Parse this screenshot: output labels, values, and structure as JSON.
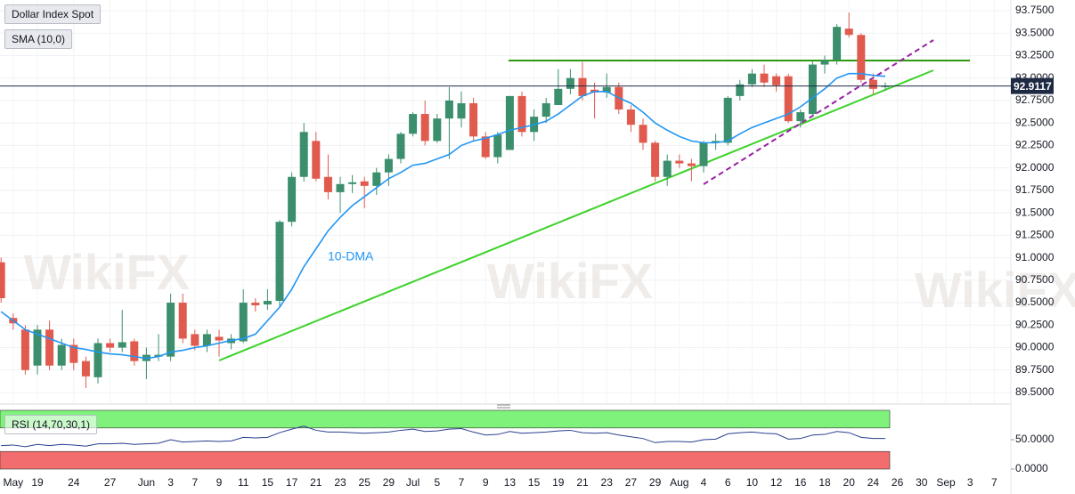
{
  "chart_data": [
    {
      "type": "candlestick",
      "title": "Dollar Index Spot",
      "categories": [
        null,
        "May",
        null,
        "19",
        null,
        null,
        "24",
        null,
        null,
        "27",
        null,
        null,
        "Jun",
        null,
        "3",
        null,
        "7",
        null,
        "9",
        null,
        "11",
        null,
        "15",
        null,
        "17",
        null,
        "21",
        null,
        "23",
        null,
        "25",
        null,
        "29",
        null,
        "Jul",
        null,
        "5",
        null,
        "7",
        null,
        "9",
        null,
        "13",
        null,
        "15",
        null,
        "19",
        null,
        "21",
        null,
        "23",
        null,
        "27",
        null,
        "29",
        null,
        "Aug",
        null,
        "4",
        null,
        "6",
        null,
        "10",
        null,
        "12",
        null,
        "16",
        null,
        "18",
        null,
        "20",
        null,
        "24",
        null,
        "26",
        null,
        "30",
        null,
        "Sep",
        null,
        "3",
        null,
        "7"
      ],
      "open": [
        90.95,
        90.33,
        90.2,
        89.8,
        90.2,
        89.8,
        90.03,
        89.85,
        89.67,
        90.05,
        90.0,
        90.07,
        89.85,
        89.9,
        89.9,
        90.5,
        90.15,
        90.02,
        90.12,
        90.05,
        90.07,
        90.5,
        90.48,
        90.52,
        91.4,
        91.9,
        92.3,
        91.9,
        91.73,
        91.82,
        91.85,
        91.8,
        91.95,
        92.1,
        92.38,
        92.6,
        92.3,
        92.55,
        92.55,
        92.72,
        92.35,
        92.12,
        92.2,
        92.8,
        92.4,
        92.57,
        92.7,
        92.88,
        93.0,
        92.87,
        92.84,
        92.9,
        92.65,
        92.48,
        92.28,
        91.9,
        92.08,
        92.05,
        92.02,
        92.28,
        92.28,
        92.8,
        92.93,
        93.05,
        93.02,
        93.02,
        92.52,
        92.6,
        93.15,
        93.2,
        93.55,
        93.48,
        92.98,
        92.9,
        null,
        null,
        null,
        null,
        null,
        null,
        null,
        null,
        null
      ],
      "high": [
        91.0,
        90.38,
        90.25,
        90.25,
        90.3,
        90.1,
        90.1,
        89.9,
        90.1,
        90.1,
        90.42,
        90.1,
        90.0,
        90.15,
        90.6,
        90.6,
        90.2,
        90.2,
        90.2,
        90.15,
        90.65,
        90.55,
        90.65,
        91.42,
        91.95,
        92.5,
        92.4,
        92.15,
        91.9,
        91.92,
        91.9,
        92.0,
        92.15,
        92.4,
        92.62,
        92.75,
        92.6,
        92.9,
        92.85,
        92.78,
        92.4,
        92.4,
        92.8,
        92.85,
        92.65,
        92.78,
        93.1,
        93.1,
        93.18,
        92.95,
        93.05,
        92.95,
        92.7,
        92.55,
        92.3,
        92.15,
        92.15,
        92.1,
        92.3,
        92.38,
        92.8,
        92.98,
        93.1,
        93.15,
        93.05,
        93.05,
        92.65,
        93.2,
        93.25,
        93.6,
        93.73,
        93.5,
        93.05,
        92.95,
        null,
        null,
        null,
        null,
        null,
        null,
        null,
        null,
        null
      ],
      "low": [
        90.5,
        90.2,
        89.7,
        89.7,
        89.75,
        89.75,
        89.75,
        89.55,
        89.6,
        89.95,
        89.95,
        89.8,
        89.65,
        89.85,
        89.85,
        90.05,
        89.97,
        89.95,
        89.9,
        89.98,
        90.05,
        90.4,
        90.42,
        90.45,
        91.35,
        91.85,
        91.85,
        91.65,
        91.5,
        91.72,
        91.55,
        91.7,
        91.8,
        92.05,
        92.35,
        92.25,
        92.28,
        92.1,
        92.45,
        92.3,
        92.1,
        92.05,
        92.2,
        92.35,
        92.3,
        92.5,
        92.7,
        92.82,
        92.75,
        92.55,
        92.78,
        92.6,
        92.4,
        92.2,
        91.85,
        91.8,
        92.0,
        91.85,
        91.95,
        92.2,
        92.25,
        92.75,
        92.9,
        92.9,
        92.85,
        92.5,
        92.45,
        92.58,
        93.05,
        93.15,
        93.45,
        92.95,
        92.82,
        92.86,
        null,
        null,
        null,
        null,
        null,
        null,
        null,
        null,
        null
      ],
      "close": [
        90.55,
        90.27,
        89.75,
        90.2,
        89.8,
        90.03,
        89.83,
        89.68,
        90.05,
        90.0,
        90.06,
        89.85,
        89.92,
        89.92,
        90.5,
        90.1,
        90.02,
        90.15,
        90.08,
        90.1,
        90.5,
        90.47,
        90.52,
        91.4,
        91.9,
        92.4,
        91.88,
        91.73,
        91.82,
        91.84,
        91.8,
        91.95,
        92.1,
        92.38,
        92.6,
        92.3,
        92.55,
        92.75,
        92.72,
        92.35,
        92.12,
        92.37,
        92.8,
        92.4,
        92.57,
        92.72,
        92.88,
        93.0,
        92.8,
        92.84,
        92.9,
        92.65,
        92.48,
        92.28,
        91.9,
        92.08,
        92.05,
        92.02,
        92.28,
        92.3,
        92.78,
        92.93,
        93.05,
        92.95,
        92.92,
        92.52,
        92.62,
        93.15,
        93.2,
        93.57,
        93.48,
        92.98,
        92.88,
        92.91,
        null,
        null,
        null,
        null,
        null,
        null,
        null,
        null,
        null
      ],
      "up_color": "#3b8f6c",
      "down_color": "#e05a4e",
      "series": [
        {
          "name": "SMA (10,0)",
          "color": "#2196f3",
          "values": [
            90.4,
            90.3,
            90.2,
            90.15,
            90.1,
            90.05,
            90.0,
            89.98,
            89.95,
            89.93,
            89.92,
            89.9,
            89.88,
            89.9,
            89.95,
            89.97,
            90.0,
            90.02,
            90.05,
            90.08,
            90.1,
            90.15,
            90.3,
            90.45,
            90.65,
            90.9,
            91.1,
            91.3,
            91.45,
            91.58,
            91.68,
            91.78,
            91.88,
            91.95,
            92.03,
            92.05,
            92.1,
            92.15,
            92.25,
            92.3,
            92.33,
            92.37,
            92.42,
            92.45,
            92.48,
            92.52,
            92.6,
            92.7,
            92.8,
            92.85,
            92.85,
            92.78,
            92.72,
            92.62,
            92.5,
            92.42,
            92.35,
            92.3,
            92.28,
            92.28,
            92.3,
            92.38,
            92.45,
            92.5,
            92.55,
            92.6,
            92.68,
            92.78,
            92.88,
            93.0,
            93.05,
            93.05,
            93.03,
            93.02,
            null,
            null,
            null,
            null,
            null,
            null,
            null,
            null,
            null
          ]
        }
      ],
      "annotation": "10-DMA",
      "last_price": 92.9117,
      "watermark": "WikiFX",
      "ylim": [
        89.5,
        93.75
      ],
      "yticks": [
        {
          "value": 93.75,
          "label": "93.7500"
        },
        {
          "value": 93.5,
          "label": "93.5000"
        },
        {
          "value": 93.25,
          "label": "93.2500"
        },
        {
          "value": 93.0,
          "label": "93.0000"
        },
        {
          "value": 92.75,
          "label": "92.7500"
        },
        {
          "value": 92.5,
          "label": "92.5000"
        },
        {
          "value": 92.25,
          "label": "92.2500"
        },
        {
          "value": 92.0,
          "label": "92.0000"
        },
        {
          "value": 91.75,
          "label": "91.7500"
        },
        {
          "value": 91.5,
          "label": "91.5000"
        },
        {
          "value": 91.25,
          "label": "91.2500"
        },
        {
          "value": 91.0,
          "label": "91.0000"
        },
        {
          "value": 90.75,
          "label": "90.7500"
        },
        {
          "value": 90.5,
          "label": "90.5000"
        },
        {
          "value": 90.25,
          "label": "90.2500"
        },
        {
          "value": 90.0,
          "label": "90.0000"
        },
        {
          "value": 89.75,
          "label": "89.7500"
        },
        {
          "value": 89.5,
          "label": "89.5000"
        }
      ],
      "grid": true
    },
    {
      "type": "rsi",
      "title": "RSI (14,70,30,1)",
      "color": "#2a3f8f",
      "upper": 70,
      "lower": 30,
      "upper_color": "#7ef27a",
      "lower_color": "#f26d6d",
      "values": [
        40,
        41,
        38,
        42,
        40,
        42,
        41,
        39,
        43,
        43,
        44,
        42,
        43,
        44,
        50,
        46,
        47,
        48,
        47,
        48,
        54,
        53,
        54,
        62,
        68,
        73,
        66,
        63,
        63,
        62,
        61,
        62,
        63,
        66,
        68,
        64,
        65,
        68,
        69,
        63,
        58,
        59,
        64,
        61,
        62,
        63,
        65,
        66,
        62,
        61,
        62,
        58,
        55,
        52,
        45,
        47,
        47,
        46,
        50,
        51,
        60,
        62,
        63,
        61,
        60,
        51,
        52,
        58,
        59,
        64,
        62,
        54,
        52,
        52,
        null,
        null,
        null,
        null,
        null,
        null,
        null,
        null,
        null
      ],
      "ylim": [
        0,
        100
      ],
      "yticks": [
        {
          "value": 50,
          "label": "50.0000"
        },
        {
          "value": 0,
          "label": "0.0000"
        }
      ]
    }
  ]
}
